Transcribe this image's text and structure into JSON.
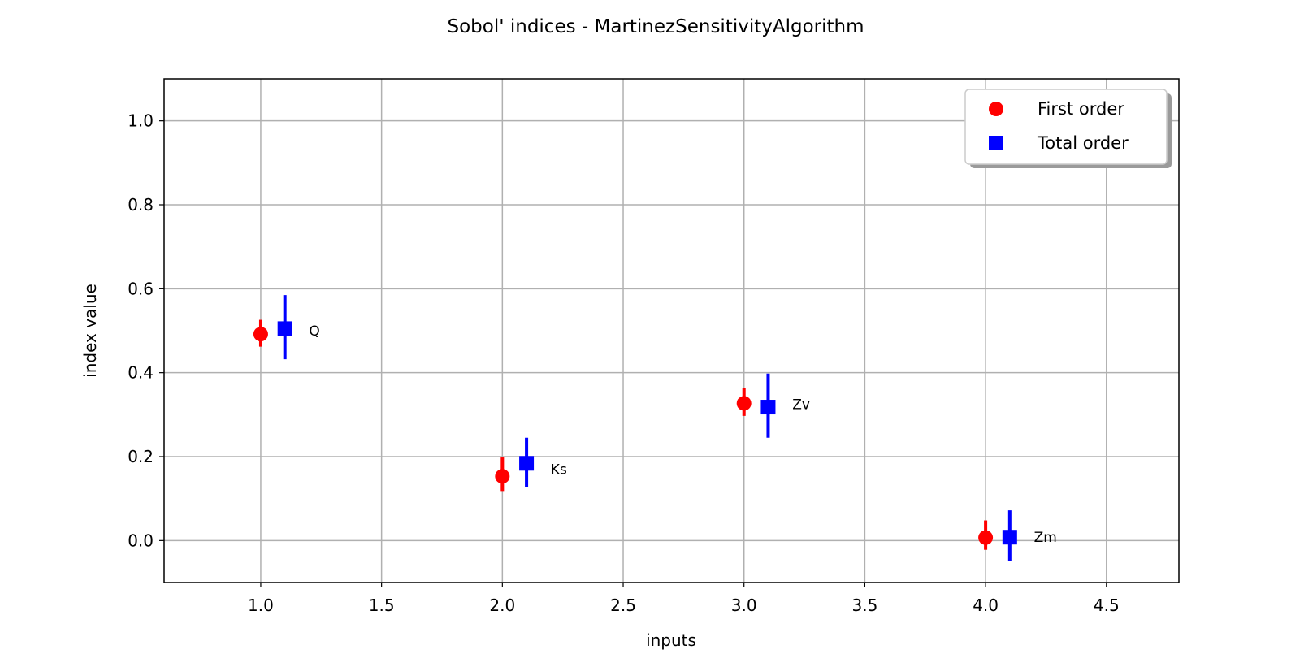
{
  "chart_data": {
    "type": "scatter",
    "title": "Sobol' indices - MartinezSensitivityAlgorithm",
    "xlabel": "inputs",
    "ylabel": "index value",
    "xlim": [
      0.6,
      4.8
    ],
    "ylim": [
      -0.1,
      1.1
    ],
    "x_ticks": [
      1.0,
      1.5,
      2.0,
      2.5,
      3.0,
      3.5,
      4.0,
      4.5
    ],
    "x_tick_labels": [
      "1.0",
      "1.5",
      "2.0",
      "2.5",
      "3.0",
      "3.5",
      "4.0",
      "4.5"
    ],
    "y_ticks": [
      0.0,
      0.2,
      0.4,
      0.6,
      0.8,
      1.0
    ],
    "y_tick_labels": [
      "0.0",
      "0.2",
      "0.4",
      "0.6",
      "0.8",
      "1.0"
    ],
    "grid": true,
    "legend_position": "top-right",
    "series": [
      {
        "name": "First order",
        "marker": "circle",
        "color": "#ff0000",
        "points": [
          {
            "x": 1.0,
            "y": 0.492,
            "lower": 0.462,
            "upper": 0.526
          },
          {
            "x": 2.0,
            "y": 0.153,
            "lower": 0.118,
            "upper": 0.198
          },
          {
            "x": 3.0,
            "y": 0.327,
            "lower": 0.297,
            "upper": 0.364
          },
          {
            "x": 4.0,
            "y": 0.007,
            "lower": -0.022,
            "upper": 0.048
          }
        ]
      },
      {
        "name": "Total order",
        "marker": "square",
        "color": "#0000ff",
        "points": [
          {
            "x": 1.1,
            "y": 0.505,
            "lower": 0.432,
            "upper": 0.585
          },
          {
            "x": 2.1,
            "y": 0.184,
            "lower": 0.128,
            "upper": 0.245
          },
          {
            "x": 3.1,
            "y": 0.318,
            "lower": 0.245,
            "upper": 0.398
          },
          {
            "x": 4.1,
            "y": 0.008,
            "lower": -0.048,
            "upper": 0.072
          }
        ]
      }
    ],
    "annotations": [
      {
        "text": "Q",
        "x": 1.2,
        "y": 0.5
      },
      {
        "text": "Ks",
        "x": 2.2,
        "y": 0.17
      },
      {
        "text": "Zv",
        "x": 3.2,
        "y": 0.325
      },
      {
        "text": "Zm",
        "x": 4.2,
        "y": 0.008
      }
    ]
  }
}
